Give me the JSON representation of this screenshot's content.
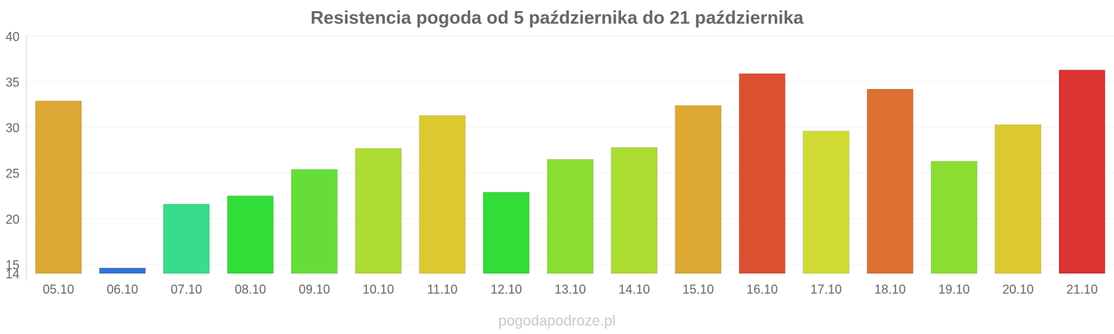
{
  "chart_data": {
    "type": "bar",
    "title": "Resistencia pogoda od 5 października do 21 października",
    "categories": [
      "05.10",
      "06.10",
      "07.10",
      "08.10",
      "09.10",
      "10.10",
      "11.10",
      "12.10",
      "13.10",
      "14.10",
      "15.10",
      "16.10",
      "17.10",
      "18.10",
      "19.10",
      "20.10",
      "21.10"
    ],
    "values": [
      32.9,
      14.6,
      21.6,
      22.5,
      25.4,
      27.7,
      31.3,
      22.9,
      26.5,
      27.8,
      32.4,
      35.9,
      29.6,
      34.2,
      26.3,
      30.3,
      36.3
    ],
    "colors": [
      "#dda833",
      "#3173d6",
      "#38dc8a",
      "#32dd38",
      "#66dd38",
      "#acdd32",
      "#dcc932",
      "#32dd38",
      "#8ade32",
      "#acdd32",
      "#dda833",
      "#dc5032",
      "#cfdb32",
      "#dd6f33",
      "#8ade32",
      "#dcc932",
      "#db3232"
    ],
    "yticks": [
      14,
      15,
      20,
      25,
      30,
      35,
      40
    ],
    "ylim": [
      14,
      40
    ],
    "grid": true,
    "xlabel": "",
    "ylabel": ""
  },
  "watermark": "pogodapodroze.pl"
}
